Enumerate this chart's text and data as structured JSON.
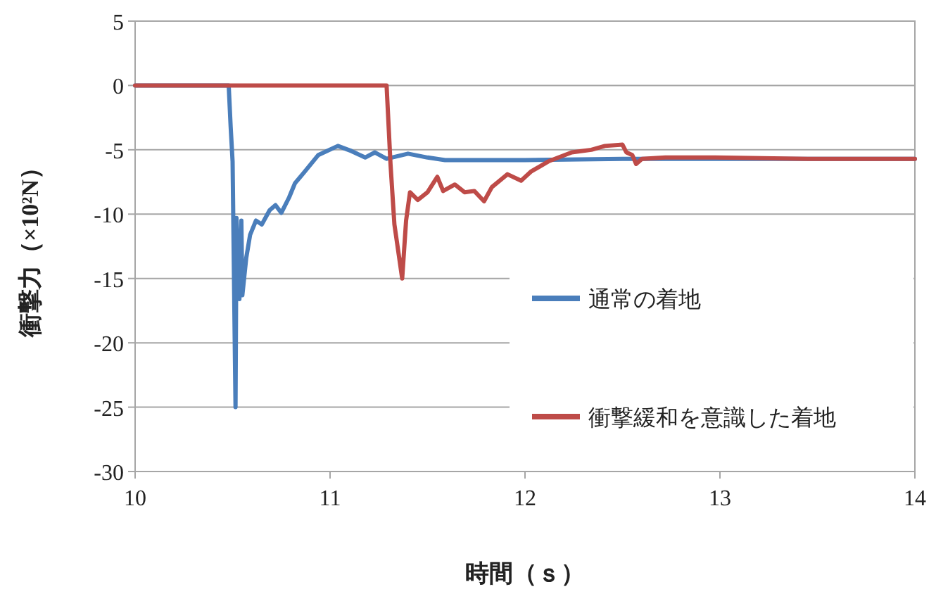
{
  "chart_data": {
    "type": "line",
    "xlabel": "時間（ｓ）",
    "ylabel": "衝撃力（×10²N）",
    "xlim": [
      10,
      14
    ],
    "xticks": [
      10,
      11,
      12,
      13,
      14
    ],
    "ylim": [
      -30,
      5
    ],
    "yticks": [
      -30,
      -25,
      -20,
      -15,
      -10,
      -5,
      0,
      5
    ],
    "grid": "y",
    "legend": "right",
    "marker": "none",
    "line_style": "solid",
    "series": [
      {
        "name": "通常の着地",
        "color": "#4a7ebb",
        "x": [
          10,
          10.48,
          10.49,
          10.5,
          10.515,
          10.52,
          10.535,
          10.545,
          10.55,
          10.57,
          10.59,
          10.62,
          10.65,
          10.69,
          10.72,
          10.75,
          10.79,
          10.82,
          10.87,
          10.94,
          11.04,
          11.11,
          11.18,
          11.23,
          11.29,
          11.4,
          11.5,
          11.59,
          12,
          12.5,
          13,
          14
        ],
        "values": [
          0,
          0,
          -3.2,
          -5.9,
          -25,
          -10.3,
          -16.6,
          -10.5,
          -16.3,
          -13.4,
          -11.6,
          -10.5,
          -10.8,
          -9.7,
          -9.3,
          -9.9,
          -8.7,
          -7.6,
          -6.7,
          -5.4,
          -4.7,
          -5.1,
          -5.6,
          -5.2,
          -5.7,
          -5.3,
          -5.6,
          -5.8,
          -5.8,
          -5.7,
          -5.7,
          -5.7
        ]
      },
      {
        "name": "衝撃緩和を意識した着地",
        "color": "#be4b48",
        "x": [
          10,
          11.29,
          11.31,
          11.33,
          11.37,
          11.39,
          11.41,
          11.45,
          11.5,
          11.55,
          11.58,
          11.64,
          11.69,
          11.74,
          11.79,
          11.83,
          11.91,
          11.98,
          12.03,
          12.12,
          12.24,
          12.34,
          12.41,
          12.5,
          12.52,
          12.55,
          12.57,
          12.6,
          12.72,
          12.97,
          13.45,
          14
        ],
        "values": [
          0,
          0,
          -6.1,
          -10.8,
          -15,
          -10.5,
          -8.3,
          -8.9,
          -8.3,
          -7.1,
          -8.2,
          -7.7,
          -8.3,
          -8.2,
          -9,
          -7.9,
          -6.9,
          -7.4,
          -6.7,
          -5.9,
          -5.2,
          -5,
          -4.7,
          -4.6,
          -5.2,
          -5.4,
          -6.1,
          -5.7,
          -5.6,
          -5.6,
          -5.7,
          -5.7
        ]
      }
    ]
  }
}
